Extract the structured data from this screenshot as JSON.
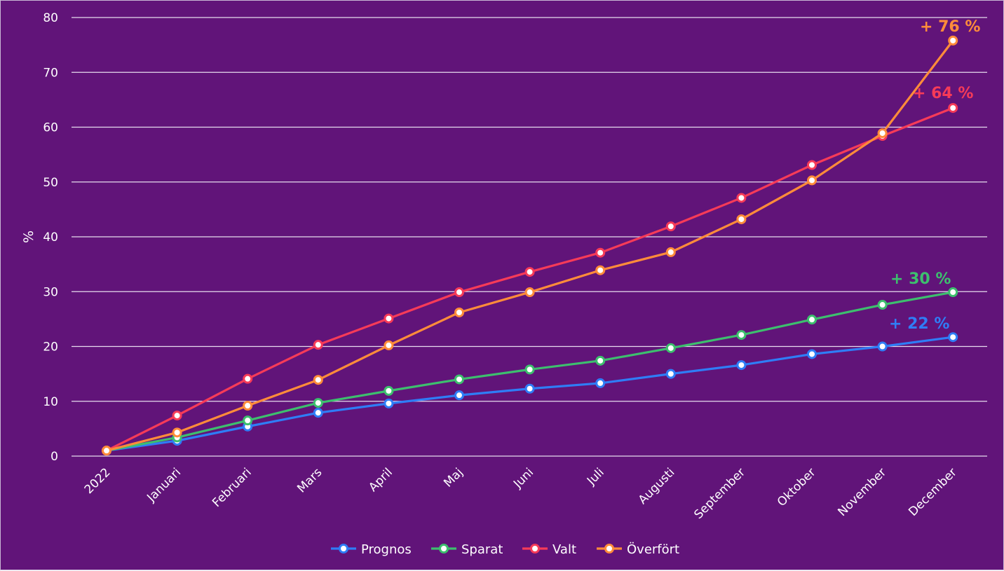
{
  "chart_data": {
    "type": "line",
    "title": "",
    "xlabel": "",
    "ylabel": "%",
    "ylim": [
      0,
      80
    ],
    "yticks": [
      0,
      10,
      20,
      30,
      40,
      50,
      60,
      70,
      80
    ],
    "grid": true,
    "legend_position": "bottom-center",
    "categories": [
      "2022",
      "Januari",
      "Februari",
      "Mars",
      "April",
      "Maj",
      "Juni",
      "Juli",
      "Augusti",
      "September",
      "Oktober",
      "November",
      "December"
    ],
    "series": [
      {
        "name": "Prognos",
        "color": "#2f7df6",
        "values": [
          1.0,
          2.8,
          5.4,
          7.9,
          9.6,
          11.1,
          12.3,
          13.3,
          15.0,
          16.6,
          18.6,
          20.0,
          21.7
        ]
      },
      {
        "name": "Sparat",
        "color": "#3dbf6e",
        "values": [
          1.0,
          3.4,
          6.5,
          9.7,
          11.9,
          14.0,
          15.8,
          17.4,
          19.7,
          22.1,
          24.9,
          27.6,
          29.9
        ]
      },
      {
        "name": "Valt",
        "color": "#f63b58",
        "values": [
          1.0,
          7.4,
          14.1,
          20.3,
          25.1,
          29.9,
          33.6,
          37.1,
          41.9,
          47.1,
          53.1,
          58.4,
          63.5
        ]
      },
      {
        "name": "Överfört",
        "color": "#ff8c3a",
        "values": [
          1.0,
          4.3,
          9.2,
          13.9,
          20.2,
          26.2,
          29.9,
          33.9,
          37.2,
          43.2,
          50.3,
          58.9,
          75.8
        ]
      }
    ],
    "annotations": [
      {
        "series": "Överfört",
        "text": "+ 76 %"
      },
      {
        "series": "Valt",
        "text": "+ 64 %"
      },
      {
        "series": "Sparat",
        "text": "+ 30 %"
      },
      {
        "series": "Prognos",
        "text": "+ 22 %"
      }
    ]
  }
}
